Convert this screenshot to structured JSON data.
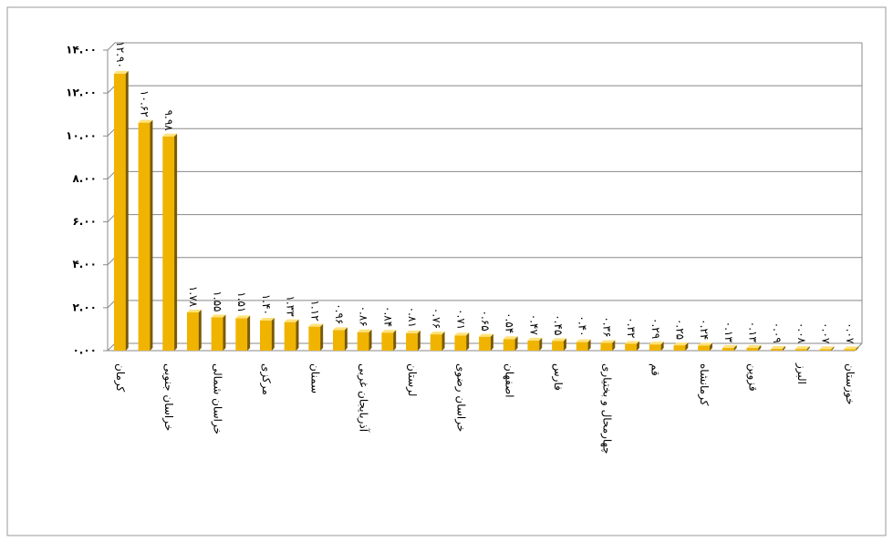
{
  "chart_data": {
    "type": "bar",
    "categories": [
      "کرمان",
      null,
      "خراسان جنوبی",
      null,
      "خراسان شمالی",
      null,
      "مرکزی",
      null,
      "سمنان",
      null,
      "آذربایجان غربی",
      null,
      "لرستان",
      null,
      "خراسان رضوی",
      null,
      "اصفهان",
      null,
      "فارس",
      null,
      "چهارمحال و بختیاری",
      null,
      "قم",
      null,
      "کرمانشاه",
      null,
      "قزوین",
      null,
      "البرز",
      null,
      "خوزستان"
    ],
    "values": [
      12.9,
      10.62,
      9.98,
      1.78,
      1.55,
      1.51,
      1.4,
      1.33,
      1.12,
      0.96,
      0.86,
      0.84,
      0.81,
      0.76,
      0.71,
      0.65,
      0.54,
      0.47,
      0.45,
      0.4,
      0.36,
      0.32,
      0.29,
      0.25,
      0.24,
      0.13,
      0.13,
      0.09,
      0.08,
      0.07,
      0.07
    ],
    "value_labels": [
      "۱۲.۹۰",
      "۱۰.۶۲",
      "۹.۹۸",
      "۱.۷۸",
      "۱.۵۵",
      "۱.۵۱",
      "۱.۴۰",
      "۱.۳۳",
      "۱.۱۲",
      "۰.۹۶",
      "۰.۸۶",
      "۰.۸۴",
      "۰.۸۱",
      "۰.۷۶",
      "۰.۷۱",
      "۰.۶۵",
      "۰.۵۴",
      "۰.۴۷",
      "۰.۴۵",
      "۰.۴۰",
      "۰.۳۶",
      "۰.۳۲",
      "۰.۲۹",
      "۰.۲۵",
      "۰.۲۴",
      "۰.۱۳",
      "۰.۱۳",
      "۰.۰۹",
      "۰.۰۸",
      "۰.۰۷",
      "۰.۰۷"
    ],
    "color": "#f0b400",
    "ylim": [
      0,
      14
    ],
    "yticks": [
      {
        "value": 0,
        "label": "۰.۰۰"
      },
      {
        "value": 2,
        "label": "۲.۰۰"
      },
      {
        "value": 4,
        "label": "۴.۰۰"
      },
      {
        "value": 6,
        "label": "۶.۰۰"
      },
      {
        "value": 8,
        "label": "۸.۰۰"
      },
      {
        "value": 10,
        "label": "۱۰.۰۰"
      },
      {
        "value": 12,
        "label": "۱۲.۰۰"
      },
      {
        "value": 14,
        "label": "۱۴.۰۰"
      }
    ],
    "grid": true
  }
}
